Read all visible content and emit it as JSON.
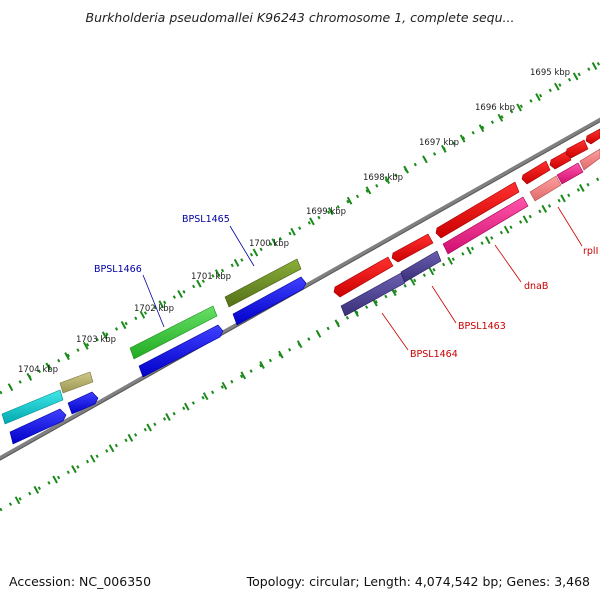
{
  "title": "Burkholderia pseudomallei K96243 chromosome 1, complete sequ...",
  "footer": {
    "accession": "Accession: NC_006350",
    "topology": "Topology: circular; Length: 4,074,542 bp; Genes: 3,468"
  },
  "ruler_labels": [
    "1695 kbp",
    "1696 kbp",
    "1697 kbp",
    "1698 kbp",
    "1699 kbp",
    "1700 kbp",
    "1701 kbp",
    "1702 kbp",
    "1703 kbp",
    "1704 kbp"
  ],
  "gene_labels": [
    {
      "text": "BPSL1465",
      "color": "#0000a0"
    },
    {
      "text": "BPSL1466",
      "color": "#0000a0"
    },
    {
      "text": "dnaB",
      "color": "#cc0000"
    },
    {
      "text": "BPSL1463",
      "color": "#cc0000"
    },
    {
      "text": "BPSL1464",
      "color": "#cc0000"
    },
    {
      "text": "rplI",
      "color": "#cc0000"
    }
  ],
  "colors": {
    "backbone": "#808080",
    "ticks": "#1a8a1a",
    "blue_cds": "#0000ee",
    "red_cds": "#ee0000",
    "pink_cds": "#ee2288",
    "salmon_cds": "#f08080",
    "purple_cds": "#4b3f8c",
    "cyan_cds": "#00c8c8",
    "olive_cds": "#6b8e23",
    "green_cds": "#33cc33",
    "khaki_cds": "#b5b06a"
  }
}
